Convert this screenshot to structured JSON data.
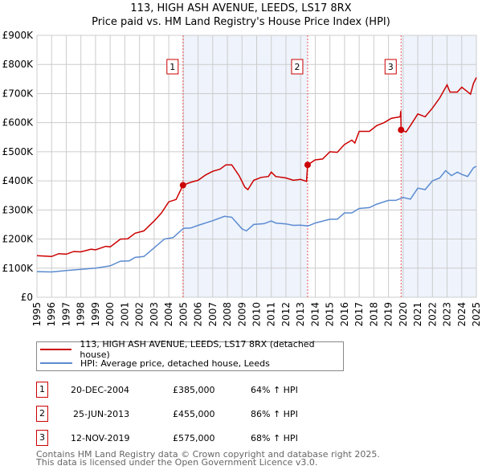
{
  "chart_data": {
    "type": "line",
    "title": "113, HIGH ASH AVENUE, LEEDS, LS17 8RX",
    "subtitle": "Price paid vs. HM Land Registry's House Price Index (HPI)",
    "xlabel": "",
    "ylabel": "",
    "xlim": [
      1995,
      2025
    ],
    "ylim": [
      0,
      900000
    ],
    "y_ticks": [
      {
        "v": 0,
        "label": "£0"
      },
      {
        "v": 100000,
        "label": "£100K"
      },
      {
        "v": 200000,
        "label": "£200K"
      },
      {
        "v": 300000,
        "label": "£300K"
      },
      {
        "v": 400000,
        "label": "£400K"
      },
      {
        "v": 500000,
        "label": "£500K"
      },
      {
        "v": 600000,
        "label": "£600K"
      },
      {
        "v": 700000,
        "label": "£700K"
      },
      {
        "v": 800000,
        "label": "£800K"
      },
      {
        "v": 900000,
        "label": "£900K"
      }
    ],
    "x_ticks": [
      "1995",
      "1996",
      "1997",
      "1998",
      "1999",
      "2000",
      "2001",
      "2002",
      "2003",
      "2004",
      "2005",
      "2006",
      "2007",
      "2008",
      "2009",
      "2010",
      "2011",
      "2012",
      "2013",
      "2014",
      "2015",
      "2016",
      "2017",
      "2018",
      "2019",
      "2020",
      "2021",
      "2022",
      "2023",
      "2024",
      "2025"
    ],
    "grid": true,
    "series": [
      {
        "name": "113, HIGH ASH AVENUE, LEEDS, LS17 8RX (detached house)",
        "color": "#cc0000",
        "x": [
          1995,
          1996,
          1996.5,
          1997,
          1997.5,
          1998,
          1998.7,
          1999,
          1999.7,
          2000,
          2000.7,
          2001.2,
          2001.7,
          2002.3,
          2003,
          2003.5,
          2004,
          2004.5,
          2004.97,
          2005.5,
          2006,
          2006.5,
          2007,
          2007.5,
          2007.9,
          2008.3,
          2008.8,
          2009.2,
          2009.4,
          2009.8,
          2010.3,
          2010.8,
          2011,
          2011.3,
          2012,
          2012.5,
          2013,
          2013.4,
          2013.48,
          2014,
          2014.5,
          2015,
          2015.5,
          2016,
          2016.5,
          2016.7,
          2017,
          2017.7,
          2018.2,
          2018.7,
          2019.2,
          2019.8,
          2019.84,
          2019.86,
          2020.2,
          2020.5,
          2021,
          2021.5,
          2022,
          2022.5,
          2023,
          2023.2,
          2023.7,
          2024,
          2024.3,
          2024.6,
          2024.8,
          2025
        ],
        "y": [
          143000,
          140000,
          150000,
          148000,
          157000,
          156000,
          165000,
          163000,
          175000,
          173000,
          200000,
          201000,
          220000,
          228000,
          262000,
          290000,
          328000,
          336000,
          385000,
          395000,
          402000,
          420000,
          433000,
          440000,
          455000,
          455000,
          418000,
          378000,
          370000,
          402000,
          412000,
          415000,
          430000,
          415000,
          410000,
          402000,
          405000,
          398000,
          455000,
          472000,
          475000,
          500000,
          498000,
          525000,
          540000,
          530000,
          570000,
          570000,
          590000,
          600000,
          615000,
          620000,
          640000,
          575000,
          568000,
          590000,
          630000,
          620000,
          650000,
          685000,
          730000,
          705000,
          705000,
          722000,
          710000,
          698000,
          735000,
          755000
        ]
      },
      {
        "name": "HPI: Average price, detached house, Leeds",
        "color": "#5b8bd0",
        "x": [
          1995,
          1996,
          1997,
          1998,
          1999,
          2000,
          2000.7,
          2001.3,
          2001.7,
          2002.3,
          2003,
          2003.7,
          2004.3,
          2005,
          2005.5,
          2006,
          2007,
          2007.8,
          2008.3,
          2009,
          2009.3,
          2009.8,
          2010.5,
          2011,
          2011.3,
          2012,
          2012.5,
          2013,
          2013.5,
          2014,
          2015,
          2015.5,
          2016,
          2016.5,
          2017,
          2017.7,
          2018.2,
          2019,
          2019.5,
          2020,
          2020.5,
          2021,
          2021.5,
          2022,
          2022.5,
          2022.9,
          2023.3,
          2023.7,
          2024,
          2024.4,
          2024.8,
          2025
        ],
        "y": [
          88000,
          87000,
          92000,
          96000,
          100000,
          108000,
          124000,
          125000,
          137000,
          140000,
          170000,
          200000,
          205000,
          237000,
          238000,
          247000,
          263000,
          278000,
          275000,
          235000,
          228000,
          250000,
          253000,
          262000,
          255000,
          252000,
          247000,
          248000,
          245000,
          255000,
          268000,
          268000,
          290000,
          290000,
          305000,
          308000,
          320000,
          333000,
          333000,
          343000,
          337000,
          375000,
          370000,
          400000,
          410000,
          435000,
          418000,
          430000,
          422000,
          415000,
          445000,
          450000
        ]
      }
    ],
    "shaded_ranges": [
      [
        2004.97,
        2013.48
      ],
      [
        2019.86,
        2025
      ]
    ],
    "sales": [
      {
        "n": "1",
        "x": 2004.97,
        "date": "20-DEC-2004",
        "price": 385000,
        "price_label": "£385,000",
        "hpi": "64% ↑ HPI"
      },
      {
        "n": "2",
        "x": 2013.48,
        "date": "25-JUN-2013",
        "price": 455000,
        "price_label": "£455,000",
        "hpi": "86% ↑ HPI"
      },
      {
        "n": "3",
        "x": 2019.86,
        "date": "12-NOV-2019",
        "price": 575000,
        "price_label": "£575,000",
        "hpi": "68% ↑ HPI"
      }
    ],
    "legend_placement": "below"
  },
  "footer": {
    "line1": "Contains HM Land Registry data © Crown copyright and database right 2025.",
    "line2": "This data is licensed under the Open Government Licence v3.0."
  }
}
